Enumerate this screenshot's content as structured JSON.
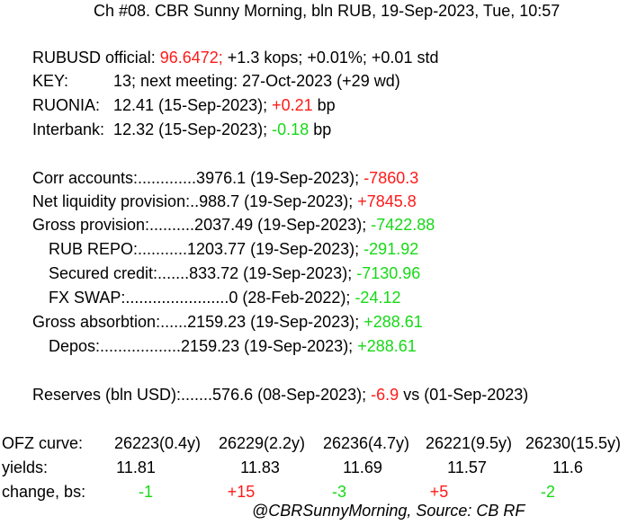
{
  "header": "Ch #08. CBR Sunny Morning, bln RUB, 19-Sep-2023, Tue, 10:57",
  "rubusd": {
    "label": "RUBUSD official: ",
    "value": "96.6472;",
    "rest": " +1.3 kops; +0.01%; +0.01 std"
  },
  "key": {
    "label": "KEY:          13; next meeting: 27-Oct-2023 (+29 wd)"
  },
  "ruonia": {
    "label": "RUONIA:   12.41 (15-Sep-2023); ",
    "change": "+0.21",
    "unit": " bp"
  },
  "interbank": {
    "label": "Interbank:  12.32 (15-Sep-2023); ",
    "change": "-0.18",
    "unit": " bp"
  },
  "corr": {
    "label": "Corr accounts:.............3976.1 (19-Sep-2023); ",
    "change": "-7860.3"
  },
  "netliq": {
    "label": "Net liquidity provision:..988.7 (19-Sep-2023); ",
    "change": "+7845.8"
  },
  "gross": {
    "label": "Gross provision:..........2037.49 (19-Sep-2023); ",
    "change": "-7422.88"
  },
  "repo": {
    "label": "RUB REPO:...........1203.77 (19-Sep-2023); ",
    "change": "-291.92"
  },
  "secured": {
    "label": "Secured credit:.......833.72 (19-Sep-2023); ",
    "change": "-7130.96"
  },
  "fxswap": {
    "label": "FX SWAP:.......................0 (28-Feb-2022); ",
    "change": "-24.12"
  },
  "absorb": {
    "label": "Gross absorbtion:......2159.23 (19-Sep-2023); ",
    "change": "+288.61"
  },
  "depos": {
    "label": "Depos:..................2159.23 (19-Sep-2023); ",
    "change": "+288.61"
  },
  "reserves": {
    "label": "Reserves (bln USD):.......576.6 (08-Sep-2023); ",
    "change": "-6.9",
    "rest": " vs (01-Sep-2023)"
  },
  "ofz": {
    "curve_label": "OFZ curve:",
    "yields_label": "yields:",
    "change_label": "change, bs:",
    "bonds": [
      "26223(0.4y)",
      "26229(2.2y)",
      "26236(4.7y)",
      "26221(9.5y)",
      "26230(15.5y)"
    ],
    "yields": [
      "11.81",
      "11.83",
      "11.69",
      "11.57",
      "11.6"
    ],
    "changes": [
      "-1",
      "+15",
      "-3",
      "+5",
      "-2"
    ]
  },
  "footer": "@CBRSunnyMorning, Source: CB RF",
  "colors": {
    "up": "#ff1a1a",
    "down": "#16d916"
  }
}
